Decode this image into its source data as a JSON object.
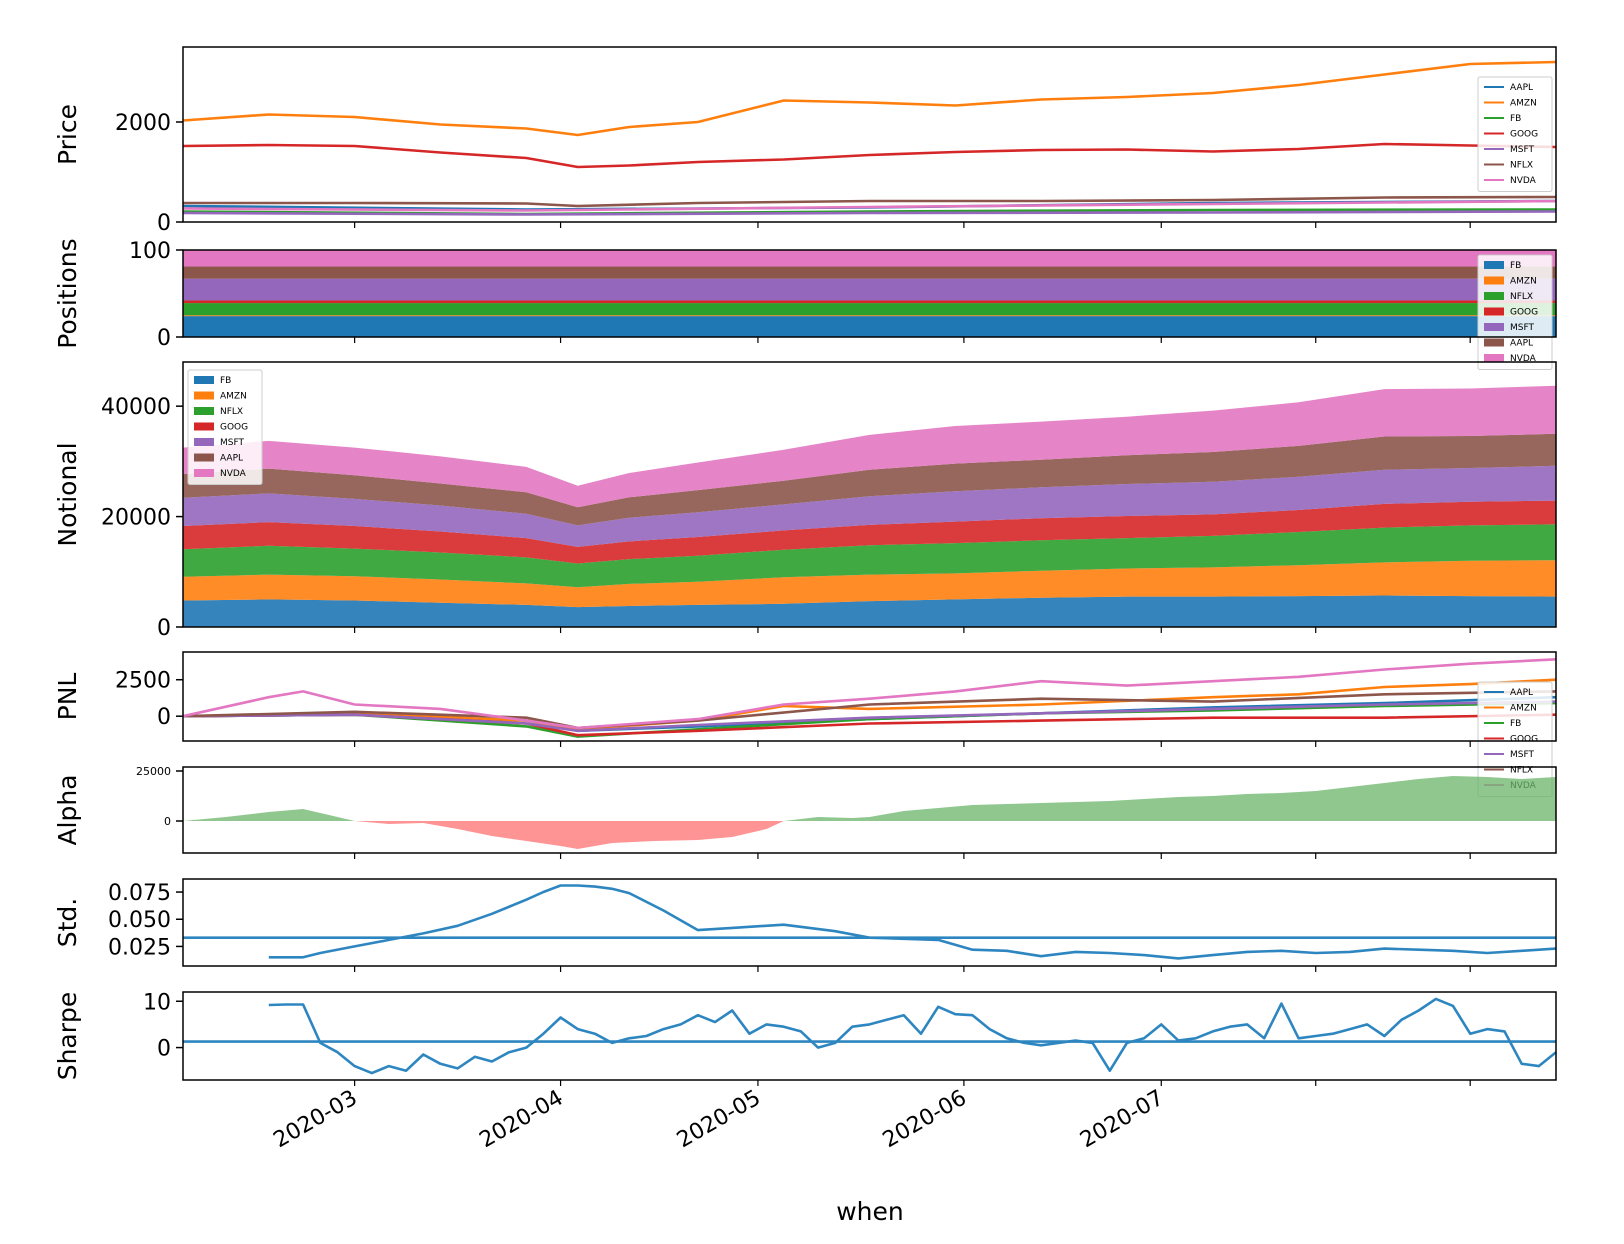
{
  "figure": {
    "xlabel": "when",
    "date_ticks": [
      "2020-03",
      "2020-04",
      "2020-05",
      "2020-06",
      "2020-07"
    ],
    "colors": {
      "blue": "#1f77b4",
      "orange": "#ff7f0e",
      "green": "#2ca02c",
      "red": "#d62728",
      "purple": "#9467bd",
      "brown": "#8c564b",
      "pink": "#e377c2",
      "alpha_pos": "#6ab46a",
      "alpha_neg": "#ff7070",
      "line": "#2e86c1"
    }
  },
  "chart_data": [
    {
      "name": "price",
      "type": "line",
      "ylabel": "Price",
      "yticks": [
        0,
        2000
      ],
      "ylim": [
        0,
        3500
      ],
      "legend": [
        "AAPL",
        "AMZN",
        "FB",
        "GOOG",
        "MSFT",
        "NFLX",
        "NVDA"
      ],
      "series": [
        {
          "name": "AAPL",
          "color": "#1f77b4",
          "x": [
            0,
            40,
            80,
            120,
            160
          ],
          "values": [
            320,
            250,
            290,
            380,
            420
          ]
        },
        {
          "name": "AMZN",
          "color": "#ff7f0e",
          "x": [
            0,
            10,
            20,
            30,
            40,
            46,
            52,
            60,
            70,
            80,
            90,
            100,
            110,
            120,
            130,
            140,
            150,
            160
          ],
          "values": [
            2030,
            2150,
            2100,
            1950,
            1870,
            1740,
            1900,
            2000,
            2430,
            2390,
            2330,
            2450,
            2500,
            2580,
            2740,
            2950,
            3160,
            3200
          ]
        },
        {
          "name": "FB",
          "color": "#2ca02c",
          "x": [
            0,
            40,
            80,
            120,
            160
          ],
          "values": [
            210,
            160,
            210,
            240,
            250
          ]
        },
        {
          "name": "GOOG",
          "color": "#d62728",
          "x": [
            0,
            10,
            20,
            30,
            40,
            46,
            52,
            60,
            70,
            80,
            90,
            100,
            110,
            120,
            130,
            140,
            150,
            160
          ],
          "values": [
            1520,
            1540,
            1520,
            1390,
            1280,
            1100,
            1130,
            1200,
            1250,
            1340,
            1400,
            1440,
            1450,
            1410,
            1460,
            1560,
            1530,
            1500
          ]
        },
        {
          "name": "MSFT",
          "color": "#9467bd",
          "x": [
            0,
            40,
            80,
            120,
            160
          ],
          "values": [
            180,
            150,
            180,
            190,
            210
          ]
        },
        {
          "name": "NFLX",
          "color": "#8c564b",
          "x": [
            0,
            20,
            40,
            46,
            60,
            80,
            100,
            120,
            140,
            160
          ],
          "values": [
            380,
            380,
            370,
            320,
            380,
            420,
            420,
            440,
            490,
            500
          ]
        },
        {
          "name": "NVDA",
          "color": "#e377c2",
          "x": [
            0,
            40,
            80,
            120,
            160
          ],
          "values": [
            270,
            230,
            300,
            360,
            420
          ]
        }
      ]
    },
    {
      "name": "positions",
      "type": "area",
      "ylabel": "Positions",
      "yticks": [
        0,
        100
      ],
      "ylim": [
        0,
        100
      ],
      "legend": [
        "FB",
        "AMZN",
        "NFLX",
        "GOOG",
        "MSFT",
        "AAPL",
        "NVDA"
      ],
      "series": [
        {
          "name": "FB",
          "values": [
            24
          ]
        },
        {
          "name": "AMZN",
          "values": [
            1
          ]
        },
        {
          "name": "NFLX",
          "values": [
            14
          ]
        },
        {
          "name": "GOOG",
          "values": [
            3
          ]
        },
        {
          "name": "MSFT",
          "values": [
            25
          ]
        },
        {
          "name": "AAPL",
          "values": [
            14
          ]
        },
        {
          "name": "NVDA",
          "values": [
            19
          ]
        }
      ]
    },
    {
      "name": "notional",
      "type": "area",
      "ylabel": "Notional",
      "yticks": [
        0,
        20000,
        40000
      ],
      "ylim": [
        0,
        48000
      ],
      "legend": [
        "FB",
        "AMZN",
        "NFLX",
        "GOOG",
        "MSFT",
        "AAPL",
        "NVDA"
      ],
      "x": [
        0,
        10,
        20,
        30,
        40,
        46,
        52,
        60,
        70,
        80,
        90,
        100,
        110,
        120,
        130,
        140,
        150,
        160
      ],
      "series": [
        {
          "name": "FB",
          "values": [
            4800,
            5000,
            4800,
            4400,
            4000,
            3600,
            3800,
            4000,
            4200,
            4700,
            5000,
            5300,
            5500,
            5500,
            5600,
            5700,
            5600,
            5500
          ]
        },
        {
          "name": "AMZN",
          "values": [
            4300,
            4500,
            4400,
            4200,
            3900,
            3600,
            4000,
            4200,
            4800,
            4800,
            4700,
            4900,
            5100,
            5300,
            5600,
            6000,
            6400,
            6600
          ]
        },
        {
          "name": "NFLX",
          "values": [
            5000,
            5200,
            5000,
            4900,
            4700,
            4300,
            4500,
            4700,
            5000,
            5300,
            5500,
            5500,
            5500,
            5700,
            6000,
            6300,
            6400,
            6500
          ]
        },
        {
          "name": "GOOG",
          "values": [
            4200,
            4300,
            4100,
            3800,
            3500,
            3000,
            3200,
            3400,
            3500,
            3700,
            3900,
            4000,
            4000,
            3900,
            4000,
            4300,
            4300,
            4300
          ]
        },
        {
          "name": "MSFT",
          "values": [
            5100,
            5200,
            4900,
            4700,
            4400,
            3900,
            4300,
            4500,
            4700,
            5200,
            5500,
            5600,
            5800,
            5900,
            6000,
            6200,
            6100,
            6300
          ]
        },
        {
          "name": "AAPL",
          "values": [
            4300,
            4500,
            4300,
            4000,
            3900,
            3300,
            3700,
            4000,
            4300,
            4800,
            5000,
            5000,
            5200,
            5400,
            5600,
            6000,
            5800,
            5800
          ]
        },
        {
          "name": "NVDA",
          "values": [
            4800,
            5000,
            5000,
            4900,
            4600,
            3900,
            4400,
            5000,
            5600,
            6300,
            6800,
            6900,
            7000,
            7500,
            7900,
            8600,
            8600,
            8700
          ]
        }
      ]
    },
    {
      "name": "pnl",
      "type": "line",
      "ylabel": "PNL",
      "yticks": [
        0,
        2500
      ],
      "ylim": [
        -1700,
        4400
      ],
      "legend": [
        "AAPL",
        "AMZN",
        "FB",
        "GOOG",
        "MSFT",
        "NFLX",
        "NVDA"
      ],
      "series": [
        {
          "name": "AAPL",
          "color": "#1f77b4",
          "x": [
            0,
            20,
            40,
            46,
            60,
            80,
            100,
            120,
            140,
            160
          ],
          "values": [
            0,
            100,
            -300,
            -1000,
            -700,
            -200,
            200,
            600,
            900,
            1300
          ]
        },
        {
          "name": "AMZN",
          "color": "#ff7f0e",
          "x": [
            0,
            20,
            40,
            46,
            60,
            70,
            80,
            100,
            120,
            130,
            140,
            150,
            160
          ],
          "values": [
            0,
            200,
            -300,
            -900,
            -300,
            700,
            500,
            800,
            1300,
            1500,
            2000,
            2200,
            2500
          ]
        },
        {
          "name": "FB",
          "color": "#2ca02c",
          "x": [
            0,
            20,
            40,
            46,
            60,
            80,
            100,
            120,
            140,
            160
          ],
          "values": [
            0,
            100,
            -700,
            -1400,
            -900,
            -200,
            200,
            400,
            700,
            900
          ]
        },
        {
          "name": "GOOG",
          "color": "#d62728",
          "x": [
            0,
            20,
            40,
            46,
            60,
            80,
            100,
            120,
            140,
            160
          ],
          "values": [
            0,
            100,
            -500,
            -1300,
            -1000,
            -500,
            -300,
            -100,
            -100,
            100
          ]
        },
        {
          "name": "MSFT",
          "color": "#9467bd",
          "x": [
            0,
            20,
            40,
            46,
            60,
            80,
            100,
            120,
            140,
            160
          ],
          "values": [
            0,
            100,
            -500,
            -1000,
            -600,
            -100,
            200,
            500,
            800,
            1000
          ]
        },
        {
          "name": "NFLX",
          "color": "#8c564b",
          "x": [
            0,
            20,
            40,
            46,
            60,
            80,
            100,
            120,
            140,
            160
          ],
          "values": [
            0,
            300,
            -100,
            -800,
            -300,
            800,
            1200,
            1000,
            1500,
            1700
          ]
        },
        {
          "name": "NVDA",
          "color": "#e377c2",
          "x": [
            0,
            10,
            14,
            20,
            30,
            40,
            46,
            60,
            70,
            80,
            90,
            100,
            110,
            120,
            130,
            140,
            150,
            160
          ],
          "values": [
            0,
            1300,
            1700,
            800,
            500,
            -300,
            -800,
            -200,
            800,
            1200,
            1700,
            2400,
            2100,
            2400,
            2700,
            3200,
            3600,
            3900
          ]
        }
      ]
    },
    {
      "name": "alpha",
      "type": "area",
      "ylabel": "Alpha",
      "yticks": [
        0,
        25000
      ],
      "ylim": [
        -16000,
        27000
      ],
      "x": [
        0,
        5,
        10,
        14,
        18,
        20,
        24,
        28,
        32,
        36,
        40,
        44,
        46,
        50,
        55,
        60,
        64,
        68,
        70,
        74,
        78,
        80,
        84,
        88,
        92,
        96,
        100,
        104,
        108,
        112,
        116,
        120,
        124,
        128,
        132,
        136,
        140,
        144,
        148,
        152,
        156,
        160
      ],
      "values": [
        0,
        2000,
        4500,
        6000,
        2000,
        0,
        -1500,
        -1000,
        -4000,
        -7500,
        -10000,
        -12500,
        -14000,
        -11000,
        -10000,
        -9500,
        -8000,
        -4000,
        0,
        2000,
        1500,
        2000,
        5000,
        6500,
        8000,
        8500,
        9000,
        9500,
        10000,
        11000,
        12000,
        12500,
        13500,
        14000,
        15000,
        17000,
        19000,
        21000,
        22500,
        22000,
        21000,
        22000
      ]
    },
    {
      "name": "std",
      "type": "line",
      "ylabel": "Std.",
      "yticks": [
        0.025,
        0.05,
        0.075
      ],
      "ylim": [
        0.007,
        0.087
      ],
      "hline": 0.033,
      "x": [
        10,
        14,
        16,
        20,
        24,
        28,
        32,
        36,
        40,
        42,
        44,
        46,
        48,
        50,
        52,
        56,
        60,
        64,
        70,
        76,
        80,
        84,
        88,
        92,
        96,
        100,
        104,
        108,
        112,
        116,
        120,
        124,
        128,
        132,
        136,
        140,
        144,
        148,
        152,
        156,
        160
      ],
      "values": [
        0.015,
        0.015,
        0.019,
        0.025,
        0.031,
        0.037,
        0.044,
        0.055,
        0.068,
        0.075,
        0.081,
        0.081,
        0.08,
        0.078,
        0.074,
        0.058,
        0.04,
        0.042,
        0.045,
        0.039,
        0.033,
        0.032,
        0.031,
        0.022,
        0.021,
        0.016,
        0.02,
        0.019,
        0.017,
        0.014,
        0.017,
        0.02,
        0.021,
        0.019,
        0.02,
        0.023,
        0.022,
        0.021,
        0.019,
        0.021,
        0.023
      ]
    },
    {
      "name": "sharpe",
      "type": "line",
      "ylabel": "Sharpe",
      "yticks": [
        0,
        10
      ],
      "ylim": [
        -7,
        12
      ],
      "hline": 1.3,
      "x": [
        10,
        12,
        14,
        16,
        18,
        20,
        22,
        24,
        26,
        28,
        30,
        32,
        34,
        36,
        38,
        40,
        42,
        44,
        46,
        48,
        50,
        52,
        54,
        56,
        58,
        60,
        62,
        64,
        66,
        68,
        70,
        72,
        74,
        76,
        78,
        80,
        82,
        84,
        86,
        88,
        90,
        92,
        94,
        96,
        98,
        100,
        102,
        104,
        106,
        108,
        110,
        112,
        114,
        116,
        118,
        120,
        122,
        124,
        126,
        128,
        130,
        132,
        134,
        136,
        138,
        140,
        142,
        144,
        146,
        148,
        150,
        152,
        154,
        156,
        158,
        160
      ],
      "values": [
        9.2,
        9.3,
        9.3,
        1,
        -1,
        -4,
        -5.5,
        -4,
        -5,
        -1.5,
        -3.5,
        -4.5,
        -2,
        -3,
        -1,
        0,
        3,
        6.5,
        4,
        3,
        1,
        2,
        2.5,
        4,
        5,
        7,
        5.5,
        8,
        3,
        5,
        4.5,
        3.5,
        0,
        1,
        4.5,
        5,
        6,
        7,
        3,
        8.8,
        7.2,
        7,
        4,
        2,
        1,
        0.5,
        1,
        1.5,
        1,
        -5,
        1,
        2,
        5,
        1.5,
        2,
        3.5,
        4.5,
        5,
        2,
        9.5,
        2,
        2.5,
        3,
        4,
        5,
        2.5,
        6,
        8,
        10.5,
        9,
        3,
        4,
        3.5,
        -3.5,
        -4,
        -1
      ]
    }
  ]
}
